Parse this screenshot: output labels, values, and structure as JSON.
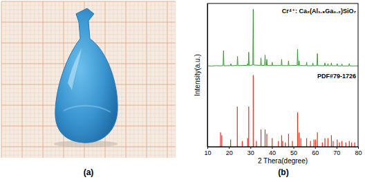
{
  "chart_data": {
    "type": "line",
    "xlabel": "2 Thera(degree)",
    "ylabel": "Intensity(a.u.)",
    "xlim": [
      10,
      80
    ],
    "xticks": [
      10,
      20,
      30,
      40,
      50,
      60,
      70,
      80
    ],
    "ylim": [
      0,
      100
    ],
    "tick_labels": "x",
    "series": [
      {
        "name": "Cr⁴⁺: Ca₂(Al₁.₈Ga₀.₂)SiO₇",
        "type": "line",
        "color": "#2e9e2e",
        "x": [
          10,
          12,
          14,
          16,
          17.3,
          17.5,
          17.7,
          20.7,
          20.9,
          21.1,
          23.8,
          24.0,
          24.2,
          28.5,
          28.7,
          28.9,
          29.0,
          29.2,
          29.4,
          31.1,
          31.3,
          31.5,
          34.7,
          34.9,
          35.1,
          36.6,
          36.8,
          37.0,
          37.4,
          37.6,
          37.8,
          39.9,
          40.1,
          40.3,
          44.3,
          44.5,
          44.7,
          47.5,
          47.7,
          47.9,
          51.7,
          51.9,
          52.1,
          52.4,
          52.6,
          52.8,
          55.9,
          56.1,
          56.3,
          58.8,
          59.0,
          59.2,
          60.9,
          61.1,
          61.3,
          64.4,
          64.6,
          64.8,
          65.8,
          66.0,
          66.2,
          67.4,
          67.6,
          67.8,
          70.1,
          70.3,
          70.5,
          72.3,
          72.5,
          72.7,
          75.7,
          75.9,
          76.1,
          80
        ],
        "values": [
          56.5,
          56.3,
          56.6,
          56.4,
          56.6,
          67,
          56.5,
          56.6,
          58,
          56.5,
          56.7,
          63,
          56.6,
          56.8,
          58,
          56.7,
          56.7,
          66,
          56.8,
          57,
          96,
          57,
          56.8,
          62,
          56.7,
          56.8,
          64,
          56.8,
          56.8,
          61,
          56.7,
          56.6,
          59,
          56.6,
          56.7,
          61,
          56.6,
          56.6,
          60,
          56.6,
          56.8,
          68,
          56.8,
          56.7,
          60,
          56.6,
          56.6,
          59,
          56.5,
          56.5,
          58.5,
          56.5,
          56.6,
          65,
          56.6,
          56.5,
          58.5,
          56.5,
          56.5,
          58,
          56.5,
          56.5,
          58.5,
          56.5,
          56.5,
          58,
          56.4,
          56.4,
          57.8,
          56.4,
          56.4,
          58,
          56.4,
          56.4
        ]
      },
      {
        "name": "PDF#79-1726",
        "type": "bar",
        "color": "#e2321e",
        "x": [
          16.1,
          16.7,
          20.8,
          23.9,
          26.2,
          28.7,
          29.2,
          31.3,
          32.8,
          34.9,
          36.8,
          37.6,
          40.1,
          43.0,
          44.5,
          45.0,
          46.2,
          47.7,
          49.5,
          51.9,
          52.6,
          53.4,
          56.1,
          57.9,
          59.5,
          60.3,
          61.1,
          63.4,
          64.6,
          66.0,
          67.6,
          68.4,
          70.3,
          71.4,
          72.5,
          74.3,
          75.9,
          77.0,
          78.4
        ],
        "values": [
          10,
          8,
          5,
          28,
          4,
          6,
          28,
          50,
          4,
          12,
          12,
          9,
          6,
          4,
          8,
          4,
          3,
          9,
          4,
          24,
          10,
          6,
          6,
          4,
          5,
          5,
          10,
          3,
          6,
          6,
          8,
          4,
          5,
          3,
          4,
          3,
          4,
          3,
          3
        ]
      }
    ]
  },
  "figure": {
    "panel_labels": [
      "(a)",
      "(b)"
    ]
  }
}
